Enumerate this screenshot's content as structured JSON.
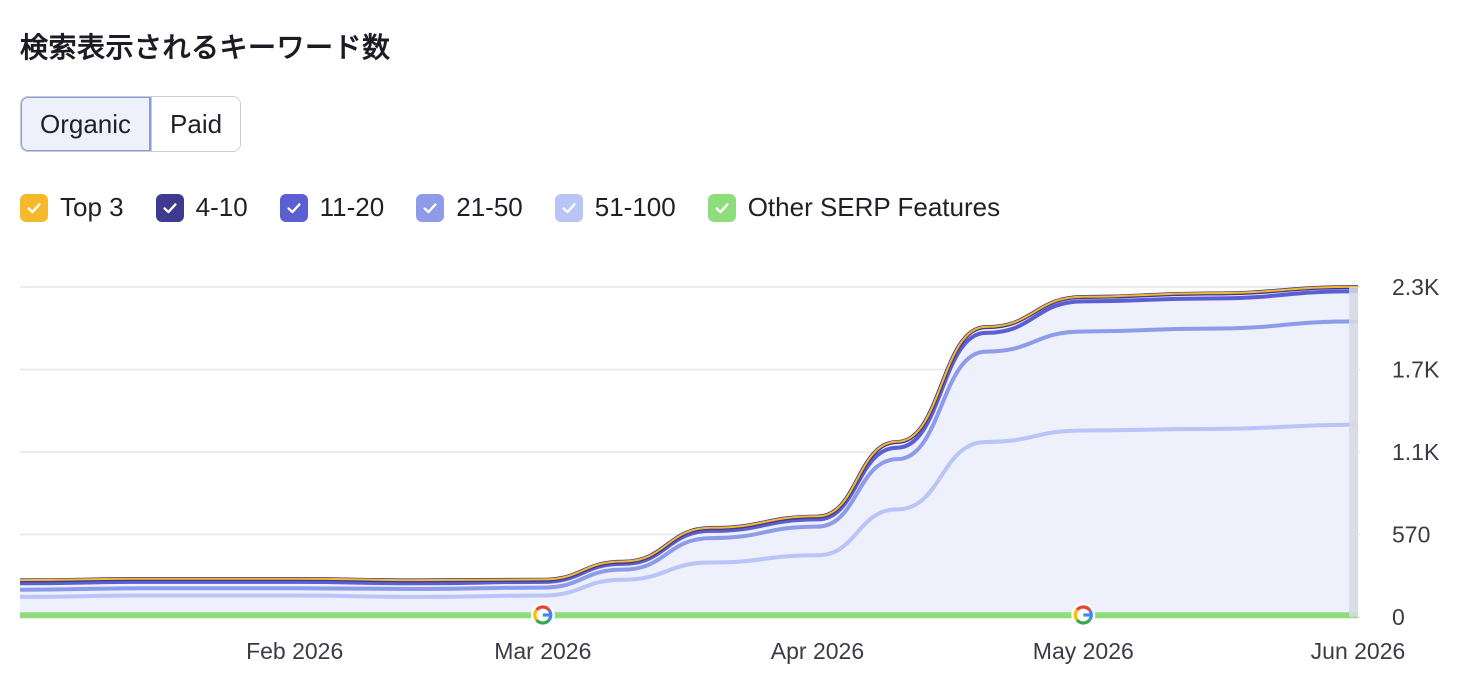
{
  "header": {
    "title": "検索表示されるキーワード数"
  },
  "toggle": {
    "organic_label": "Organic",
    "paid_label": "Paid",
    "selected": "Organic"
  },
  "legend": [
    {
      "label": "Top 3",
      "color": "#f6b92b",
      "checked": true
    },
    {
      "label": "4-10",
      "color": "#3d3a8f",
      "checked": true
    },
    {
      "label": "11-20",
      "color": "#5b5fd1",
      "checked": true
    },
    {
      "label": "21-50",
      "color": "#8d9be8",
      "checked": true
    },
    {
      "label": "51-100",
      "color": "#b9c4f7",
      "checked": true
    },
    {
      "label": "Other SERP Features",
      "color": "#8fdc7d",
      "checked": true
    }
  ],
  "chart_data": {
    "type": "area",
    "x": [
      "2026-01-01",
      "2026-01-15",
      "2026-02-01",
      "2026-02-15",
      "2026-03-01",
      "2026-03-10",
      "2026-03-20",
      "2026-04-01",
      "2026-04-10",
      "2026-04-20",
      "2026-05-01",
      "2026-05-15",
      "2026-06-01"
    ],
    "x_tick_labels": [
      "Feb 2026",
      "Mar 2026",
      "Apr 2026",
      "May 2026",
      "Jun 2026"
    ],
    "y_tick_labels": [
      "2.3K",
      "1.7K",
      "1.1K",
      "570",
      "0"
    ],
    "ylim": [
      0,
      2300
    ],
    "stacking": "cumulative",
    "series": [
      {
        "name": "Other SERP Features",
        "color": "#8fdc7d",
        "values": [
          12,
          12,
          12,
          12,
          12,
          12,
          12,
          12,
          12,
          12,
          12,
          12,
          12
        ]
      },
      {
        "name": "51-100",
        "color": "#b9c4f7",
        "values": [
          140,
          150,
          150,
          140,
          150,
          260,
          380,
          430,
          750,
          1220,
          1300,
          1310,
          1340
        ]
      },
      {
        "name": "21-50",
        "color": "#8d9be8",
        "values": [
          190,
          200,
          200,
          195,
          205,
          330,
          550,
          630,
          1100,
          1850,
          1990,
          2010,
          2060
        ]
      },
      {
        "name": "11-20",
        "color": "#5b5fd1",
        "values": [
          235,
          245,
          245,
          235,
          245,
          370,
          600,
          680,
          1180,
          1980,
          2200,
          2220,
          2270
        ]
      },
      {
        "name": "4-10",
        "color": "#3d3a8f",
        "values": [
          255,
          265,
          265,
          255,
          260,
          385,
          620,
          700,
          1220,
          2020,
          2230,
          2255,
          2300
        ]
      },
      {
        "name": "Top 3",
        "color": "#f6b92b",
        "values": [
          257,
          267,
          267,
          257,
          262,
          387,
          622,
          702,
          1222,
          2022,
          2232,
          2257,
          2302
        ]
      }
    ],
    "annotations": [
      {
        "type": "google-update-marker",
        "x": "2026-03-01"
      },
      {
        "type": "google-update-marker",
        "x": "2026-05-01"
      }
    ],
    "grid": true
  }
}
